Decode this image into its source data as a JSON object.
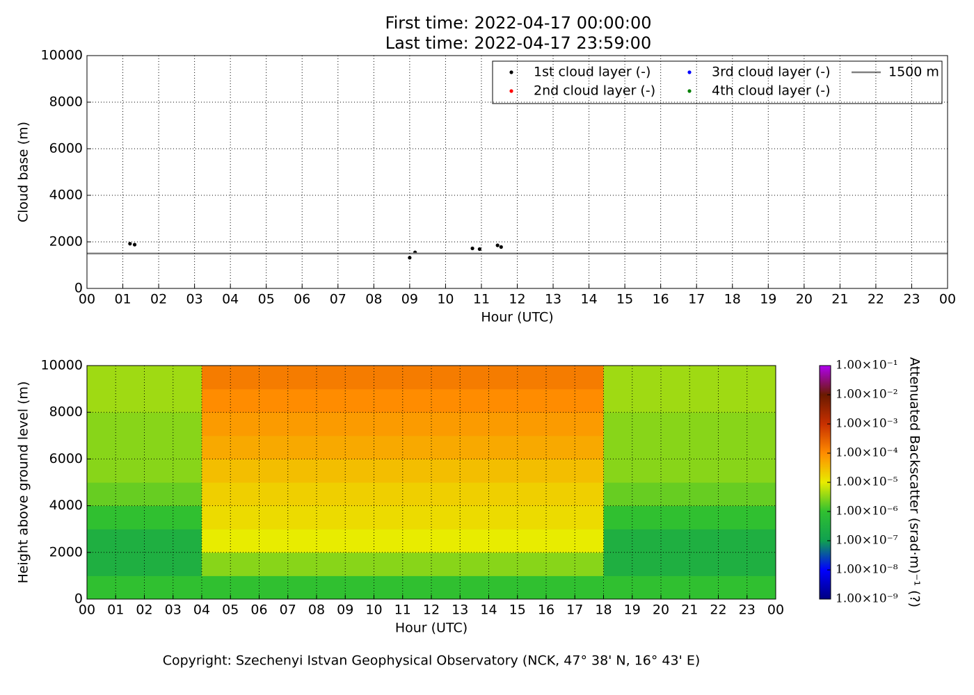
{
  "footer": "Copyright: Szechenyi Istvan Geophysical Observatory (NCK, 47° 38' N, 16° 43' E)",
  "chart_data": [
    {
      "type": "scatter",
      "title": "First time: 2022-04-17 00:00:00",
      "subtitle": "Last time: 2022-04-17 23:59:00",
      "xlabel": "Hour (UTC)",
      "ylabel": "Cloud base (m)",
      "xlim": [
        0,
        24
      ],
      "ylim": [
        0,
        10000
      ],
      "xticks": [
        {
          "value": 0,
          "label": "00"
        },
        {
          "value": 1,
          "label": "01"
        },
        {
          "value": 2,
          "label": "02"
        },
        {
          "value": 3,
          "label": "03"
        },
        {
          "value": 4,
          "label": "04"
        },
        {
          "value": 5,
          "label": "05"
        },
        {
          "value": 6,
          "label": "06"
        },
        {
          "value": 7,
          "label": "07"
        },
        {
          "value": 8,
          "label": "08"
        },
        {
          "value": 9,
          "label": "09"
        },
        10,
        11,
        12,
        13,
        14,
        15,
        16,
        17,
        18,
        19,
        20,
        21,
        22,
        23,
        {
          "value": 24,
          "label": "00"
        }
      ],
      "yticks": [
        0,
        2000,
        4000,
        6000,
        8000,
        10000
      ],
      "grid": true,
      "legend": "upper-right",
      "series": [
        {
          "name": "1st cloud layer (-)",
          "color": "#000000",
          "x": [
            1.2,
            1.33,
            9.0,
            9.15,
            10.75,
            10.95,
            11.45,
            11.55
          ],
          "values": [
            1920,
            1880,
            1320,
            1550,
            1720,
            1690,
            1850,
            1780
          ]
        },
        {
          "name": "2nd cloud layer (-)",
          "color": "#ff0000",
          "x": [],
          "values": []
        },
        {
          "name": "3rd cloud layer (-)",
          "color": "#0000ff",
          "x": [],
          "values": []
        },
        {
          "name": "4th cloud layer (-)",
          "color": "#008000",
          "x": [],
          "values": []
        },
        {
          "name": "1500 m",
          "color": "#808080",
          "style": "line",
          "x": [
            0,
            24
          ],
          "values": [
            1500,
            1500
          ]
        }
      ]
    },
    {
      "type": "heatmap",
      "xlabel": "Hour (UTC)",
      "ylabel": "Height above ground level (m)",
      "xlim": [
        0,
        24
      ],
      "ylim": [
        0,
        10000
      ],
      "xticks": [
        {
          "value": 0,
          "label": "00"
        },
        {
          "value": 1,
          "label": "01"
        },
        {
          "value": 2,
          "label": "02"
        },
        {
          "value": 3,
          "label": "03"
        },
        {
          "value": 4,
          "label": "04"
        },
        {
          "value": 5,
          "label": "05"
        },
        {
          "value": 6,
          "label": "06"
        },
        {
          "value": 7,
          "label": "07"
        },
        {
          "value": 8,
          "label": "08"
        },
        {
          "value": 9,
          "label": "09"
        },
        10,
        11,
        12,
        13,
        14,
        15,
        16,
        17,
        18,
        19,
        20,
        21,
        22,
        23,
        {
          "value": 24,
          "label": "00"
        }
      ],
      "yticks": [
        0,
        2000,
        4000,
        6000,
        8000,
        10000
      ],
      "grid": true,
      "x_edges": [
        0,
        2,
        4,
        6,
        8,
        10,
        12,
        14,
        16,
        18,
        20,
        22,
        24
      ],
      "y_edges": [
        0,
        1000,
        2000,
        3000,
        4000,
        5000,
        6000,
        7000,
        8000,
        9000,
        10000
      ],
      "z": [
        [
          1e-06,
          1e-06,
          1e-06,
          1e-06,
          1e-06,
          1e-06,
          1e-06,
          1e-06,
          1e-06,
          1e-06,
          1e-06,
          1e-06
        ],
        [
          3e-07,
          3e-07,
          3e-06,
          3e-06,
          3e-06,
          3e-06,
          3e-06,
          3e-06,
          3e-06,
          3e-07,
          3e-07,
          3e-07
        ],
        [
          3e-07,
          3e-07,
          1e-05,
          1e-05,
          1e-05,
          1e-05,
          1e-05,
          1e-05,
          1e-05,
          3e-07,
          3e-07,
          3e-07
        ],
        [
          1e-06,
          1e-06,
          1.5e-05,
          1.5e-05,
          1.5e-05,
          1.5e-05,
          1.5e-05,
          1.5e-05,
          1.5e-05,
          1e-06,
          1e-06,
          1e-06
        ],
        [
          2e-06,
          2e-06,
          2e-05,
          2e-05,
          2e-05,
          2e-05,
          2e-05,
          2e-05,
          2e-05,
          2e-06,
          2e-06,
          2e-06
        ],
        [
          3e-06,
          3e-06,
          3e-05,
          3e-05,
          3e-05,
          3e-05,
          3e-05,
          3e-05,
          3e-05,
          3e-06,
          3e-06,
          3e-06
        ],
        [
          3e-06,
          3e-06,
          5e-05,
          5e-05,
          5e-05,
          5e-05,
          5e-05,
          5e-05,
          5e-05,
          3e-06,
          3e-06,
          3e-06
        ],
        [
          3e-06,
          3e-06,
          7e-05,
          7e-05,
          7e-05,
          7e-05,
          7e-05,
          7e-05,
          7e-05,
          3e-06,
          3e-06,
          3e-06
        ],
        [
          4e-06,
          4e-06,
          0.0001,
          0.0001,
          0.0001,
          0.0001,
          0.0001,
          0.0001,
          0.0001,
          4e-06,
          4e-06,
          4e-06
        ],
        [
          4e-06,
          4e-06,
          0.00015,
          0.00015,
          0.00015,
          0.00015,
          0.00015,
          0.00015,
          0.00015,
          4e-06,
          4e-06,
          4e-06
        ]
      ],
      "zlog": true,
      "zlim": [
        1e-09,
        0.1
      ],
      "zticks": [
        {
          "value": 1e-09,
          "label": "1.00×10⁻⁹"
        },
        {
          "value": 1e-08,
          "label": "1.00×10⁻⁸"
        },
        {
          "value": 1e-07,
          "label": "1.00×10⁻⁷"
        },
        {
          "value": 1e-06,
          "label": "1.00×10⁻⁶"
        },
        {
          "value": 1e-05,
          "label": "1.00×10⁻⁵"
        },
        {
          "value": 0.0001,
          "label": "1.00×10⁻⁴"
        },
        {
          "value": 0.001,
          "label": "1.00×10⁻³"
        },
        {
          "value": 0.01,
          "label": "1.00×10⁻²"
        },
        {
          "value": 0.1,
          "label": "1.00×10⁻¹"
        }
      ],
      "colorbar_label": "Attenuated Backscatter (srad·m)⁻¹ (?)",
      "colormap": [
        "#000080",
        "#0000ff",
        "#10a050",
        "#30c030",
        "#e8ec00",
        "#ff8c00",
        "#c83000",
        "#6a1a00",
        "#b000f0"
      ]
    }
  ]
}
